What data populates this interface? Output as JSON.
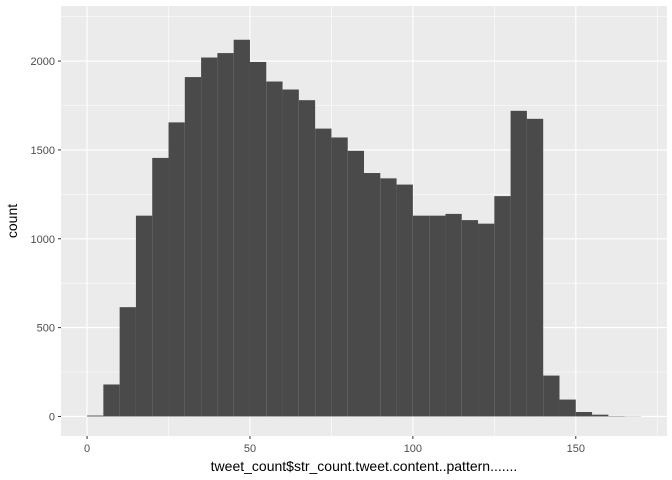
{
  "chart_data": {
    "type": "bar",
    "title": "",
    "xlabel": "tweet_count$str_count.tweet.content..pattern.......",
    "ylabel": "count",
    "xlim": [
      -8,
      178
    ],
    "ylim": [
      -110,
      2310
    ],
    "x_ticks": [
      0,
      50,
      100,
      150
    ],
    "y_ticks": [
      0,
      500,
      1000,
      1500,
      2000
    ],
    "bin_width": 5,
    "bins": [
      {
        "x0": 0,
        "x1": 5,
        "count": 5
      },
      {
        "x0": 5,
        "x1": 10,
        "count": 180
      },
      {
        "x0": 10,
        "x1": 15,
        "count": 615
      },
      {
        "x0": 15,
        "x1": 20,
        "count": 1130
      },
      {
        "x0": 20,
        "x1": 25,
        "count": 1455
      },
      {
        "x0": 25,
        "x1": 30,
        "count": 1655
      },
      {
        "x0": 30,
        "x1": 35,
        "count": 1910
      },
      {
        "x0": 35,
        "x1": 40,
        "count": 2020
      },
      {
        "x0": 40,
        "x1": 45,
        "count": 2045
      },
      {
        "x0": 45,
        "x1": 50,
        "count": 2120
      },
      {
        "x0": 50,
        "x1": 55,
        "count": 1995
      },
      {
        "x0": 55,
        "x1": 60,
        "count": 1885
      },
      {
        "x0": 60,
        "x1": 65,
        "count": 1840
      },
      {
        "x0": 65,
        "x1": 70,
        "count": 1780
      },
      {
        "x0": 70,
        "x1": 75,
        "count": 1620
      },
      {
        "x0": 75,
        "x1": 80,
        "count": 1570
      },
      {
        "x0": 80,
        "x1": 85,
        "count": 1495
      },
      {
        "x0": 85,
        "x1": 90,
        "count": 1370
      },
      {
        "x0": 90,
        "x1": 95,
        "count": 1340
      },
      {
        "x0": 95,
        "x1": 100,
        "count": 1305
      },
      {
        "x0": 100,
        "x1": 105,
        "count": 1130
      },
      {
        "x0": 105,
        "x1": 110,
        "count": 1130
      },
      {
        "x0": 110,
        "x1": 115,
        "count": 1140
      },
      {
        "x0": 115,
        "x1": 120,
        "count": 1105
      },
      {
        "x0": 120,
        "x1": 125,
        "count": 1085
      },
      {
        "x0": 125,
        "x1": 130,
        "count": 1240
      },
      {
        "x0": 130,
        "x1": 135,
        "count": 1720
      },
      {
        "x0": 135,
        "x1": 140,
        "count": 1675
      },
      {
        "x0": 140,
        "x1": 145,
        "count": 230
      },
      {
        "x0": 145,
        "x1": 150,
        "count": 95
      },
      {
        "x0": 150,
        "x1": 155,
        "count": 25
      },
      {
        "x0": 155,
        "x1": 160,
        "count": 10
      },
      {
        "x0": 160,
        "x1": 165,
        "count": 2
      },
      {
        "x0": 165,
        "x1": 170,
        "count": 1
      }
    ],
    "grid": true,
    "colors": {
      "panel_bg": "#ebebeb",
      "grid_major": "#ffffff",
      "bar_fill": "#4a4a4a",
      "tick_text": "#4d4d4d"
    }
  }
}
